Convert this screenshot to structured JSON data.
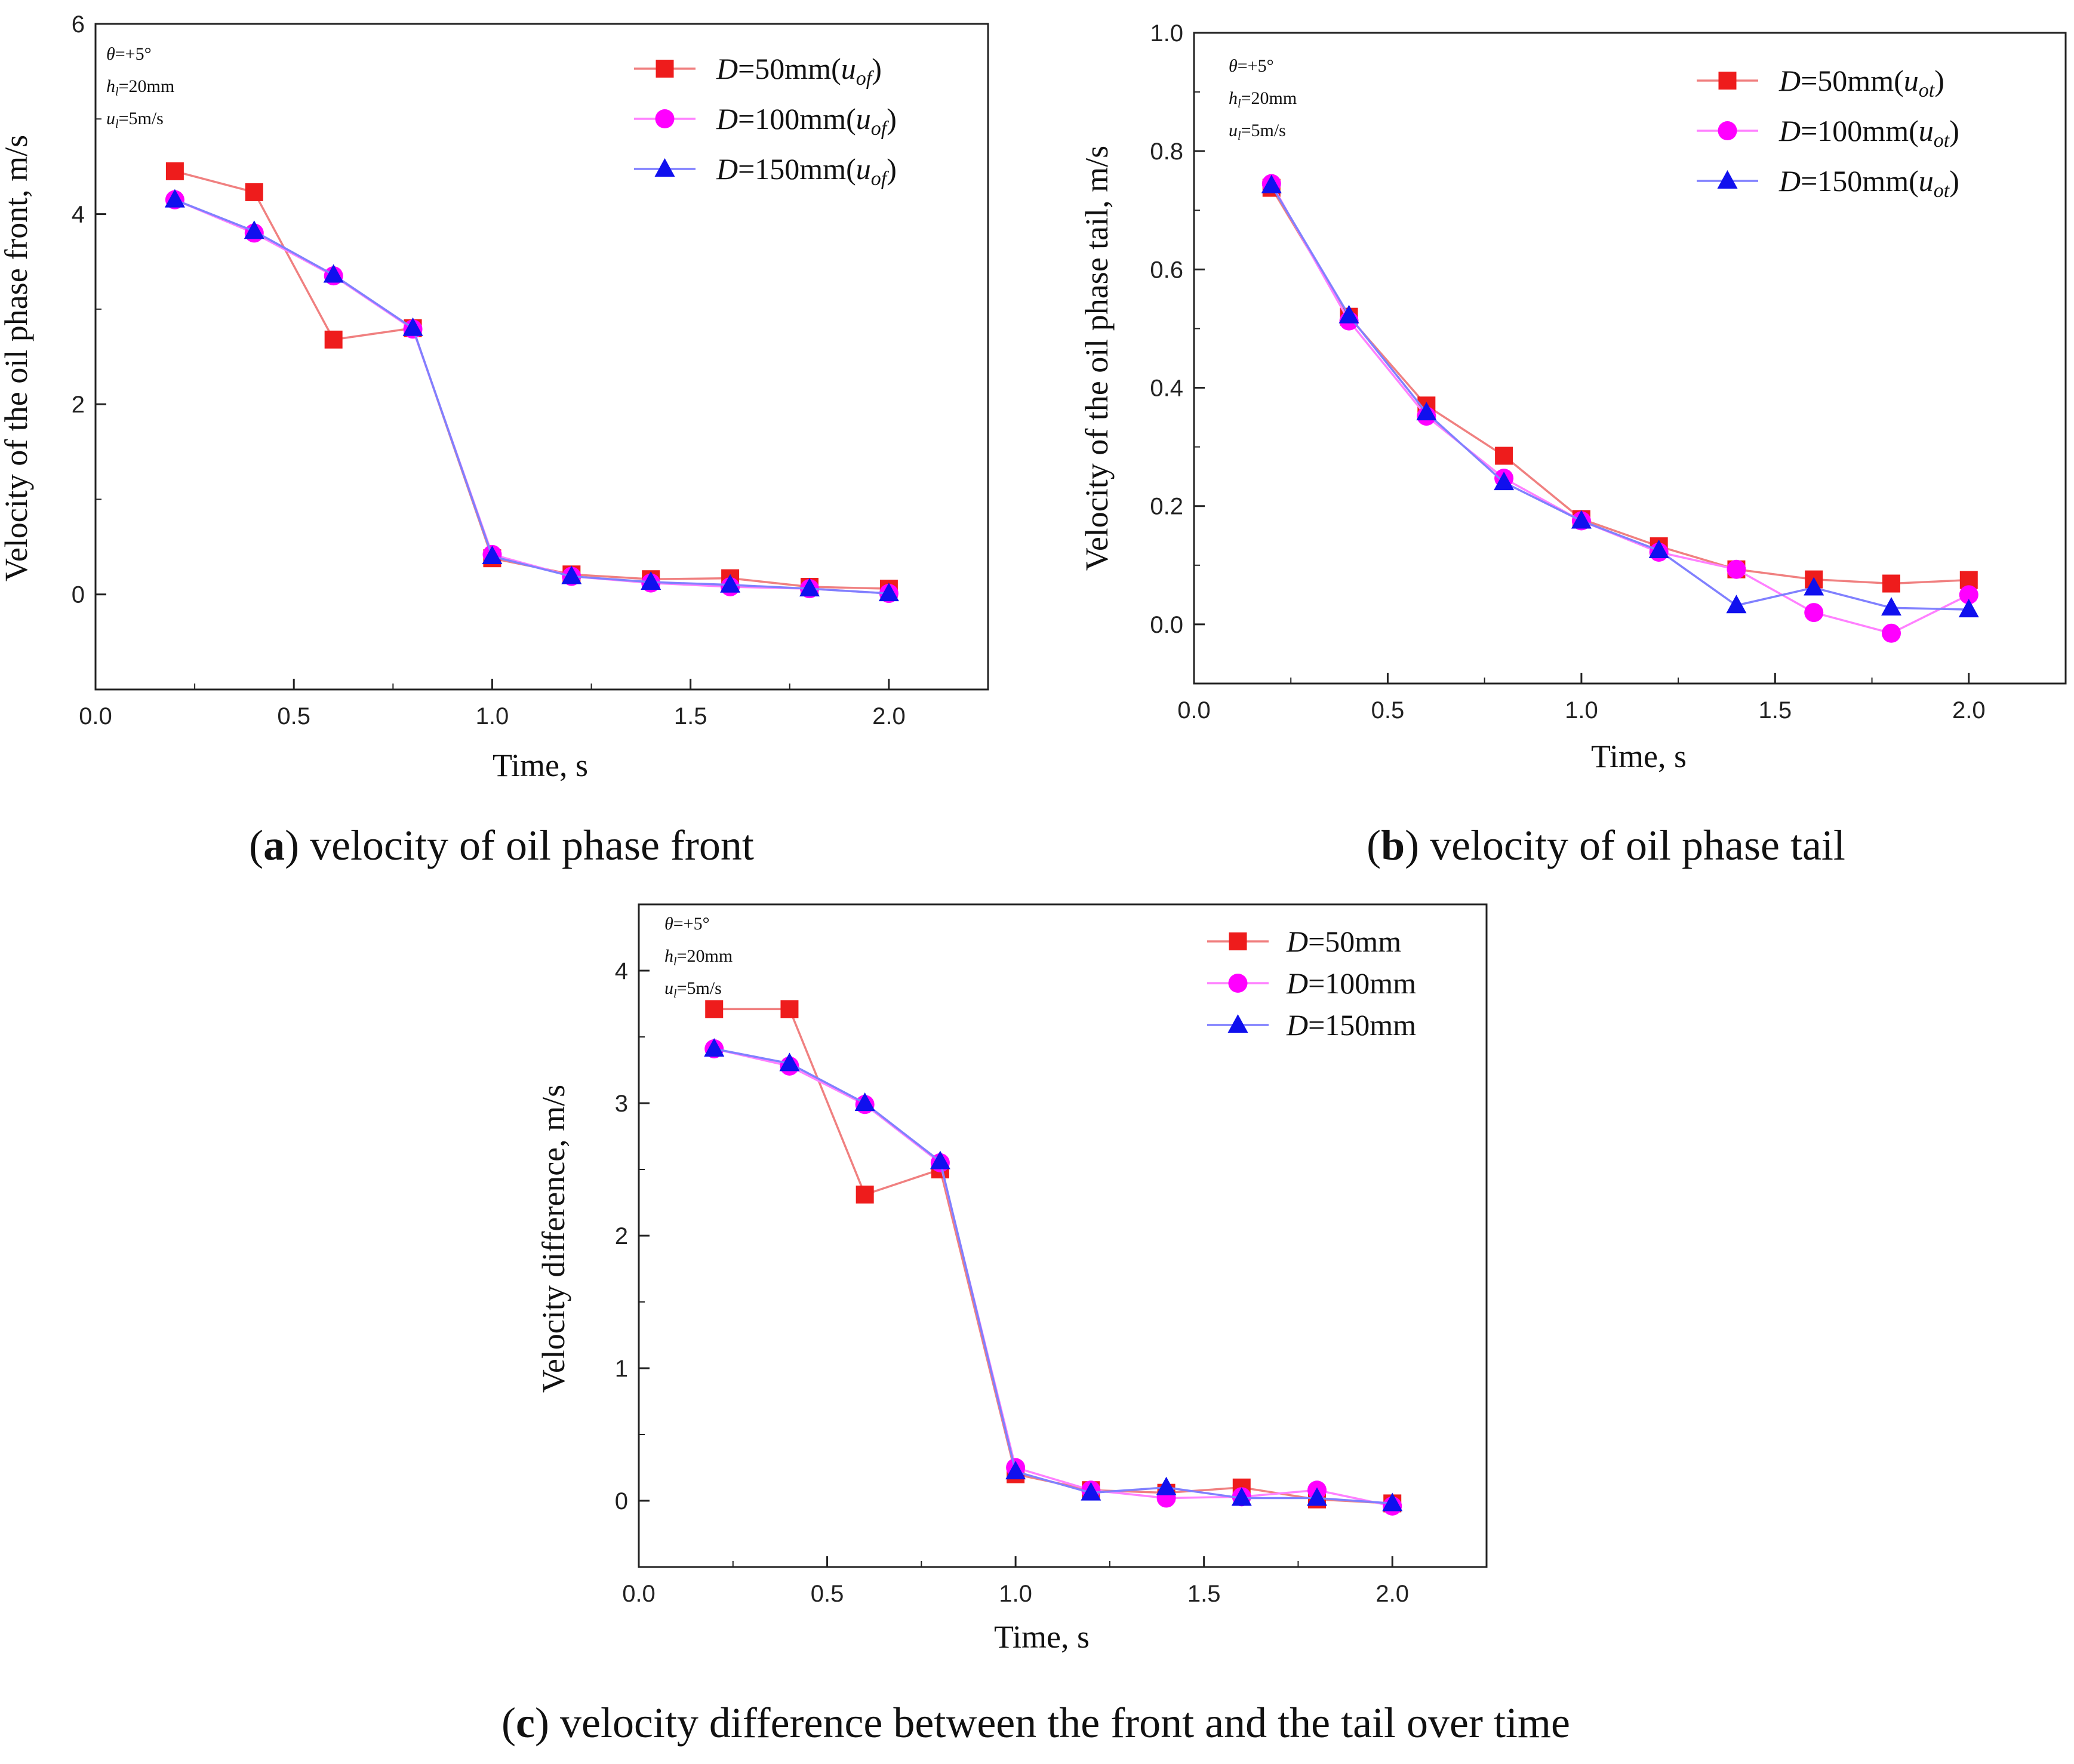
{
  "chart_data": [
    {
      "panel": "a",
      "type": "line",
      "caption": {
        "letter": "a",
        "text": "velocity of oil phase front"
      },
      "xlabel": "Time, s",
      "ylabel": "Velocity of the oil phase front, m/s",
      "xlim": [
        0.0,
        2.25
      ],
      "ylim": [
        -1,
        6
      ],
      "xticks": [
        "0.0",
        "0.5",
        "1.0",
        "1.5",
        "2.0"
      ],
      "yticks": [
        "0",
        "2",
        "4",
        "6"
      ],
      "params": [
        [
          "θ",
          "=+5°"
        ],
        [
          "h",
          "l",
          "=20mm"
        ],
        [
          "u",
          "l",
          "=5m/s"
        ]
      ],
      "x": [
        0.2,
        0.4,
        0.6,
        0.8,
        1.0,
        1.2,
        1.4,
        1.6,
        1.8,
        2.0
      ],
      "series": [
        {
          "name": "D=50mm(uof)",
          "label": "D",
          "eq": "=50mm(",
          "u": "u",
          "sub": "of",
          "close": ")",
          "color": "#ee1c1c",
          "line": "#f08080",
          "marker": "square",
          "values": [
            4.45,
            4.23,
            2.68,
            2.8,
            0.38,
            0.21,
            0.16,
            0.17,
            0.08,
            0.06
          ]
        },
        {
          "name": "D=100mm(uof)",
          "label": "D",
          "eq": "=100mm(",
          "u": "u",
          "sub": "of",
          "close": ")",
          "color": "#ff00ff",
          "line": "#ff80ff",
          "marker": "circle",
          "values": [
            4.15,
            3.8,
            3.35,
            2.79,
            0.42,
            0.19,
            0.12,
            0.08,
            0.06,
            0.01
          ]
        },
        {
          "name": "D=150mm(uof)",
          "label": "D",
          "eq": "=150mm(",
          "u": "u",
          "sub": "of",
          "close": ")",
          "color": "#1010ee",
          "line": "#8080ff",
          "marker": "triangle",
          "values": [
            4.15,
            3.82,
            3.36,
            2.8,
            0.4,
            0.19,
            0.13,
            0.1,
            0.06,
            0.01
          ]
        }
      ]
    },
    {
      "panel": "b",
      "type": "line",
      "caption": {
        "letter": "b",
        "text": "velocity of oil phase tail"
      },
      "xlabel": "Time, s",
      "ylabel": "Velocity of the oil phase tail, m/s",
      "xlim": [
        0.0,
        2.25
      ],
      "ylim": [
        -0.1,
        1.0
      ],
      "xticks": [
        "0.0",
        "0.5",
        "1.0",
        "1.5",
        "2.0"
      ],
      "yticks": [
        "0.0",
        "0.2",
        "0.4",
        "0.6",
        "0.8",
        "1.0"
      ],
      "params": [
        [
          "θ",
          "=+5°"
        ],
        [
          "h",
          "l",
          "=20mm"
        ],
        [
          "u",
          "l",
          "=5m/s"
        ]
      ],
      "x": [
        0.2,
        0.4,
        0.6,
        0.8,
        1.0,
        1.2,
        1.4,
        1.6,
        1.8,
        2.0
      ],
      "series": [
        {
          "name": "D=50mm(uot)",
          "label": "D",
          "eq": "=50mm(",
          "u": "u",
          "sub": "ot",
          "close": ")",
          "color": "#ee1c1c",
          "line": "#f08080",
          "marker": "square",
          "values": [
            0.738,
            0.52,
            0.37,
            0.285,
            0.178,
            0.132,
            0.093,
            0.076,
            0.069,
            0.075
          ]
        },
        {
          "name": "D=100mm(uot)",
          "label": "D",
          "eq": "=100mm(",
          "u": "u",
          "sub": "ot",
          "close": ")",
          "color": "#ff00ff",
          "line": "#ff80ff",
          "marker": "circle",
          "values": [
            0.745,
            0.513,
            0.352,
            0.247,
            0.175,
            0.122,
            0.093,
            0.02,
            -0.015,
            0.05
          ]
        },
        {
          "name": "D=150mm(uot)",
          "label": "D",
          "eq": "=150mm(",
          "u": "u",
          "sub": "ot",
          "close": ")",
          "color": "#1010ee",
          "line": "#8080ff",
          "marker": "triangle",
          "values": [
            0.742,
            0.522,
            0.358,
            0.24,
            0.175,
            0.125,
            0.032,
            0.062,
            0.028,
            0.025
          ]
        }
      ]
    },
    {
      "panel": "c",
      "type": "line",
      "caption": {
        "letter": "c",
        "text": "velocity difference between the front and the tail over time"
      },
      "xlabel": "Time, s",
      "ylabel": "Velocity difference, m/s",
      "xlim": [
        0.0,
        2.25
      ],
      "ylim": [
        -0.5,
        4.5
      ],
      "xticks": [
        "0.0",
        "0.5",
        "1.0",
        "1.5",
        "2.0"
      ],
      "yticks": [
        "0",
        "1",
        "2",
        "3",
        "4"
      ],
      "params": [
        [
          "θ",
          "=+5°"
        ],
        [
          "h",
          "l",
          "=20mm"
        ],
        [
          "u",
          "l",
          "=5m/s"
        ]
      ],
      "x": [
        0.2,
        0.4,
        0.6,
        0.8,
        1.0,
        1.2,
        1.4,
        1.6,
        1.8,
        2.0
      ],
      "series": [
        {
          "name": "D=50mm",
          "label": "D",
          "eq": "=50mm",
          "u": "",
          "sub": "",
          "close": "",
          "color": "#ee1c1c",
          "line": "#f08080",
          "marker": "square",
          "values": [
            3.71,
            3.71,
            2.31,
            2.5,
            0.2,
            0.08,
            0.06,
            0.1,
            0.01,
            -0.02
          ]
        },
        {
          "name": "D=100mm",
          "label": "D",
          "eq": "=100mm",
          "u": "",
          "sub": "",
          "close": "",
          "color": "#ff00ff",
          "line": "#ff80ff",
          "marker": "circle",
          "values": [
            3.41,
            3.28,
            2.99,
            2.55,
            0.25,
            0.08,
            0.02,
            0.03,
            0.08,
            -0.04
          ]
        },
        {
          "name": "D=150mm",
          "label": "D",
          "eq": "=150mm",
          "u": "",
          "sub": "",
          "close": "",
          "color": "#1010ee",
          "line": "#8080ff",
          "marker": "triangle",
          "values": [
            3.41,
            3.3,
            3.0,
            2.56,
            0.22,
            0.06,
            0.1,
            0.02,
            0.02,
            -0.02
          ]
        }
      ]
    }
  ]
}
